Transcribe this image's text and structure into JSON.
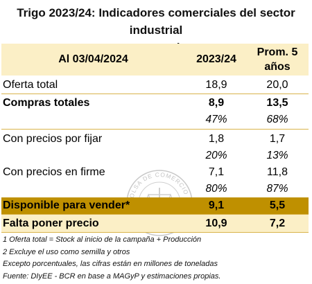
{
  "title": {
    "line1": "Trigo 2023/24: Indicadores comerciales del sector industrial",
    "line2": "y exportador"
  },
  "header": {
    "date_label": "Al 03/04/2024",
    "col1": "2023/24",
    "col2_line1": "Prom. 5",
    "col2_line2": "años"
  },
  "rows": {
    "oferta": {
      "label": "Oferta total",
      "v1": "18,9",
      "v2": "20,0"
    },
    "compras": {
      "label": "Compras totales",
      "v1": "8,9",
      "v2": "13,5"
    },
    "compras_pct": {
      "v1": "47%",
      "v2": "68%"
    },
    "fijar": {
      "label": "Con precios por fijar",
      "v1": "1,8",
      "v2": "1,7"
    },
    "fijar_pct": {
      "v1": "20%",
      "v2": "13%"
    },
    "firme": {
      "label": "Con precios en firme",
      "v1": "7,1",
      "v2": "11,8"
    },
    "firme_pct": {
      "v1": "80%",
      "v2": "87%"
    },
    "disponible": {
      "label": "Disponible para vender*",
      "v1": "9,1",
      "v2": "5,5"
    },
    "falta": {
      "label": "Falta poner precio",
      "v1": "10,9",
      "v2": "7,2"
    }
  },
  "notes": [
    "1 Oferta total = Stock al inicio de la campaña + Producción",
    "2 Excluye el uso como semilla y otros",
    "Excepto porcentuales, las cifras están en millones de toneladas",
    "Fuente: DIyEE - BCR en base a MAGyP y estimaciones propias."
  ],
  "watermark": {
    "text": "BOLSA DE COMERCIO DE ROSARIO"
  },
  "colors": {
    "header_fill": "#fbefc6",
    "highlight_fill": "#bf9000",
    "rule": "#d9b34a"
  }
}
